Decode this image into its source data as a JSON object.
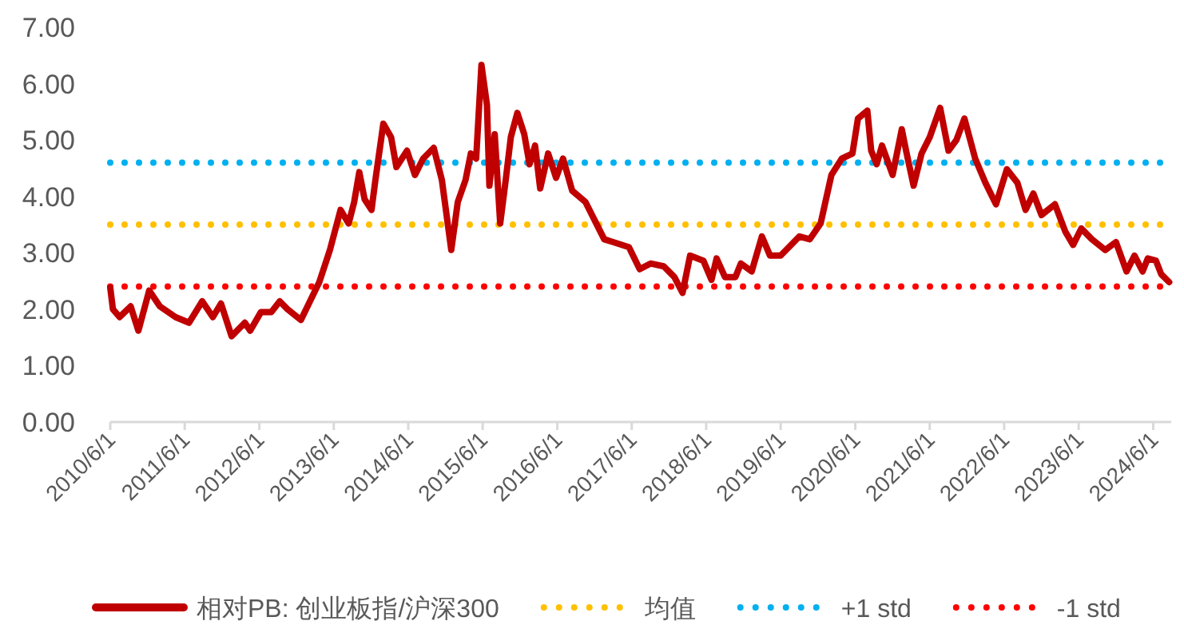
{
  "chart_data": {
    "type": "line",
    "xlim": [
      "2010-06-01",
      "2024-08-28"
    ],
    "ylim": [
      0,
      7
    ],
    "xticks": [
      {
        "value": "2010-06-01",
        "label": "2010/6/1"
      },
      {
        "value": "2011-06-01",
        "label": "2011/6/1"
      },
      {
        "value": "2012-06-01",
        "label": "2012/6/1"
      },
      {
        "value": "2013-06-01",
        "label": "2013/6/1"
      },
      {
        "value": "2014-06-01",
        "label": "2014/6/1"
      },
      {
        "value": "2015-06-01",
        "label": "2015/6/1"
      },
      {
        "value": "2016-06-01",
        "label": "2016/6/1"
      },
      {
        "value": "2017-06-01",
        "label": "2017/6/1"
      },
      {
        "value": "2018-06-01",
        "label": "2018/6/1"
      },
      {
        "value": "2019-06-01",
        "label": "2019/6/1"
      },
      {
        "value": "2020-06-01",
        "label": "2020/6/1"
      },
      {
        "value": "2021-06-01",
        "label": "2021/6/1"
      },
      {
        "value": "2022-06-01",
        "label": "2022/6/1"
      },
      {
        "value": "2023-06-01",
        "label": "2023/6/1"
      },
      {
        "value": "2024-06-01",
        "label": "2024/6/1"
      }
    ],
    "yticks": [
      {
        "value": 0,
        "label": "0.00"
      },
      {
        "value": 1,
        "label": "1.00"
      },
      {
        "value": 2,
        "label": "2.00"
      },
      {
        "value": 3,
        "label": "3.00"
      },
      {
        "value": 4,
        "label": "4.00"
      },
      {
        "value": 5,
        "label": "5.00"
      },
      {
        "value": 6,
        "label": "6.00"
      },
      {
        "value": 7,
        "label": "7.00"
      }
    ],
    "grid": false,
    "legend": "bottom",
    "series": [
      {
        "name": "相对PB: 创业板指/沪深300",
        "color": "#c00000",
        "line_style": "solid",
        "x": [
          "2010-06-01",
          "2010-06-14",
          "2010-07-17",
          "2010-09-09",
          "2010-10-17",
          "2010-12-09",
          "2011-01-30",
          "2011-04-17",
          "2011-06-22",
          "2011-08-26",
          "2011-10-17",
          "2011-11-26",
          "2012-01-17",
          "2012-03-22",
          "2012-04-17",
          "2012-06-09",
          "2012-07-30",
          "2012-09-09",
          "2012-10-17",
          "2012-12-22",
          "2013-01-30",
          "2013-03-22",
          "2013-05-13",
          "2013-07-04",
          "2013-08-13",
          "2013-09-09",
          "2013-10-04",
          "2013-10-30",
          "2013-12-03",
          "2013-12-22",
          "2014-01-30",
          "2014-03-09",
          "2014-04-04",
          "2014-05-26",
          "2014-07-04",
          "2014-08-13",
          "2014-10-04",
          "2014-11-13",
          "2014-12-29",
          "2015-01-30",
          "2015-03-09",
          "2015-04-04",
          "2015-04-30",
          "2015-05-26",
          "2015-06-22",
          "2015-07-04",
          "2015-07-30",
          "2015-08-26",
          "2015-09-22",
          "2015-10-17",
          "2015-11-18",
          "2015-12-22",
          "2016-01-17",
          "2016-02-13",
          "2016-03-09",
          "2016-04-17",
          "2016-05-26",
          "2016-06-29",
          "2016-08-13",
          "2016-10-17",
          "2016-12-09",
          "2017-01-17",
          "2017-05-18",
          "2017-07-10",
          "2017-09-01",
          "2017-11-05",
          "2017-12-27",
          "2018-02-05",
          "2018-03-14",
          "2018-05-18",
          "2018-06-27",
          "2018-07-22",
          "2018-09-01",
          "2018-10-22",
          "2018-11-18",
          "2019-01-10",
          "2019-03-01",
          "2019-04-10",
          "2019-06-01",
          "2019-09-01",
          "2019-10-22",
          "2019-12-14",
          "2020-02-05",
          "2020-03-27",
          "2020-05-18",
          "2020-06-14",
          "2020-07-30",
          "2020-08-18",
          "2020-09-14",
          "2020-10-10",
          "2020-12-01",
          "2021-01-15",
          "2021-02-05",
          "2021-03-14",
          "2021-04-22",
          "2021-06-01",
          "2021-07-22",
          "2021-09-01",
          "2021-10-10",
          "2021-11-18",
          "2022-01-10",
          "2022-03-01",
          "2022-04-22",
          "2022-06-14",
          "2022-08-05",
          "2022-09-14",
          "2022-10-22",
          "2022-12-01",
          "2023-02-05",
          "2023-03-27",
          "2023-05-05",
          "2023-06-14",
          "2023-08-05",
          "2023-10-10",
          "2023-12-01",
          "2024-01-22",
          "2024-03-01",
          "2024-04-10",
          "2024-05-05",
          "2024-06-14",
          "2024-07-10",
          "2024-08-18"
        ],
        "values": [
          2.38,
          2.0,
          1.86,
          2.05,
          1.62,
          2.33,
          2.05,
          1.86,
          1.76,
          2.14,
          1.86,
          2.1,
          1.52,
          1.76,
          1.62,
          1.95,
          1.95,
          2.14,
          2.0,
          1.81,
          2.1,
          2.48,
          3.05,
          3.76,
          3.52,
          3.9,
          4.43,
          3.95,
          3.76,
          4.29,
          5.29,
          5.05,
          4.52,
          4.81,
          4.38,
          4.67,
          4.86,
          4.29,
          3.05,
          3.9,
          4.29,
          4.76,
          4.67,
          6.33,
          5.62,
          4.19,
          5.1,
          3.52,
          4.29,
          5.05,
          5.48,
          5.1,
          4.57,
          4.9,
          4.14,
          4.76,
          4.33,
          4.67,
          4.1,
          3.9,
          3.52,
          3.24,
          3.1,
          2.71,
          2.81,
          2.76,
          2.57,
          2.29,
          2.95,
          2.86,
          2.52,
          2.9,
          2.57,
          2.57,
          2.81,
          2.67,
          3.29,
          2.95,
          2.95,
          3.29,
          3.24,
          3.52,
          4.38,
          4.67,
          4.76,
          5.38,
          5.52,
          4.81,
          4.57,
          4.9,
          4.38,
          5.19,
          4.81,
          4.19,
          4.76,
          5.05,
          5.57,
          4.81,
          5.0,
          5.38,
          4.67,
          4.24,
          3.86,
          4.48,
          4.24,
          3.76,
          4.05,
          3.67,
          3.86,
          3.38,
          3.14,
          3.43,
          3.24,
          3.05,
          3.19,
          2.67,
          2.95,
          2.67,
          2.9,
          2.86,
          2.62,
          2.48
        ]
      },
      {
        "name": "均值",
        "color": "#ffc000",
        "line_style": "dotted",
        "x": [
          "2010-06-01",
          "2024-08-18"
        ],
        "values": [
          3.5,
          3.5
        ]
      },
      {
        "name": "+1 std",
        "color": "#00b0f0",
        "line_style": "dotted",
        "x": [
          "2010-06-01",
          "2024-08-18"
        ],
        "values": [
          4.6,
          4.6
        ]
      },
      {
        "name": "-1 std",
        "color": "#ff0000",
        "line_style": "dotted",
        "x": [
          "2010-06-01",
          "2024-08-18"
        ],
        "values": [
          2.4,
          2.4
        ]
      }
    ]
  }
}
